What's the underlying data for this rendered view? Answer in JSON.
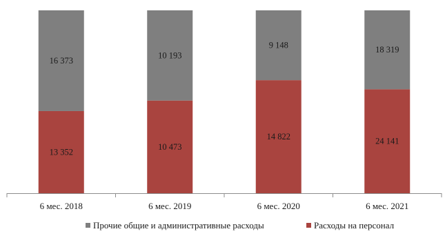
{
  "chart_data": {
    "type": "bar",
    "stacked": true,
    "normalized": true,
    "categories": [
      "6 мес. 2018",
      "6 мес. 2019",
      "6 мес. 2020",
      "6 мес. 2021"
    ],
    "series": [
      {
        "name": "Расходы на персонал",
        "values": [
          13352,
          10473,
          14822,
          24141
        ],
        "labels": [
          "13 352",
          "10 473",
          "14 822",
          "24 141"
        ],
        "color": "#a9443f"
      },
      {
        "name": "Прочие общие и административные расходы",
        "values": [
          16373,
          10193,
          9148,
          18319
        ],
        "labels": [
          "16 373",
          "10 193",
          "9 148",
          "18 319"
        ],
        "color": "#7f7f7f"
      }
    ],
    "legend": {
      "position": "bottom",
      "order": [
        "Прочие общие и административные расходы",
        "Расходы на персонал"
      ]
    },
    "grid": false
  }
}
